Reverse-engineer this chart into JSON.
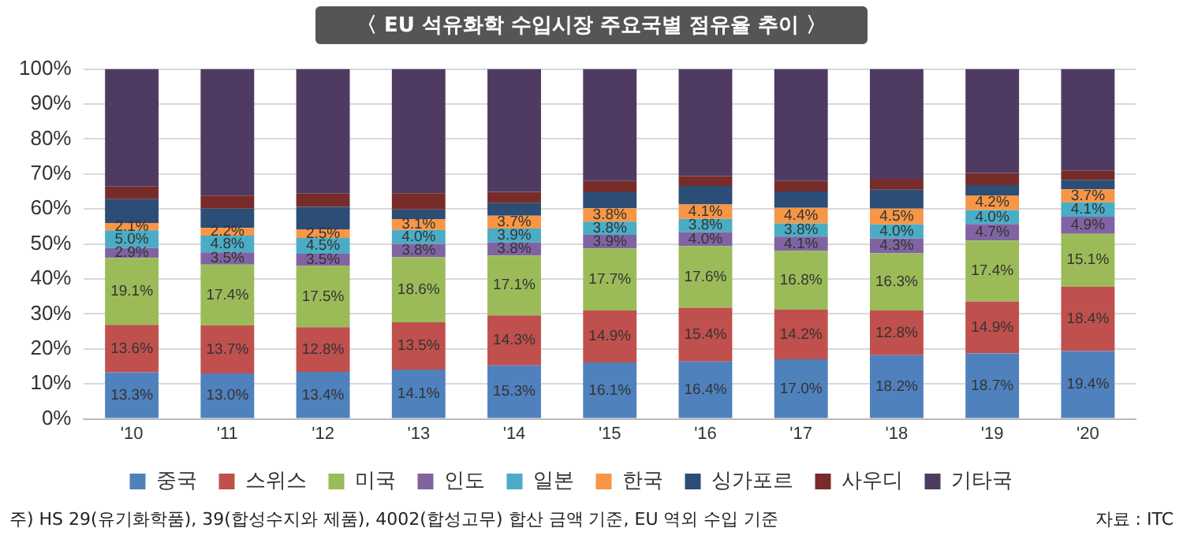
{
  "chart_data": {
    "type": "bar",
    "stacked": true,
    "title": "〈 EU 석유화학 수입시장 주요국별 점유율 추이 〉",
    "categories": [
      "'10",
      "'11",
      "'12",
      "'13",
      "'14",
      "'15",
      "'16",
      "'17",
      "'18",
      "'19",
      "'20"
    ],
    "series": [
      {
        "name": "중국",
        "color": "#4f81bd",
        "values": [
          13.3,
          13.0,
          13.4,
          14.1,
          15.3,
          16.1,
          16.4,
          17.0,
          18.2,
          18.7,
          19.4
        ],
        "value_labels": [
          "13.3%",
          "13.0%",
          "13.4%",
          "14.1%",
          "15.3%",
          "16.1%",
          "16.4%",
          "17.0%",
          "18.2%",
          "18.7%",
          "19.4%"
        ]
      },
      {
        "name": "스위스",
        "color": "#c0504d",
        "values": [
          13.6,
          13.7,
          12.8,
          13.5,
          14.3,
          14.9,
          15.4,
          14.2,
          12.8,
          14.9,
          18.4
        ],
        "value_labels": [
          "13.6%",
          "13.7%",
          "12.8%",
          "13.5%",
          "14.3%",
          "14.9%",
          "15.4%",
          "14.2%",
          "12.8%",
          "14.9%",
          "18.4%"
        ]
      },
      {
        "name": "미국",
        "color": "#9bbb59",
        "values": [
          19.1,
          17.4,
          17.5,
          18.6,
          17.1,
          17.7,
          17.6,
          16.8,
          16.3,
          17.4,
          15.1
        ],
        "value_labels": [
          "19.1%",
          "17.4%",
          "17.5%",
          "18.6%",
          "17.1%",
          "17.7%",
          "17.6%",
          "16.8%",
          "16.3%",
          "17.4%",
          "15.1%"
        ]
      },
      {
        "name": "인도",
        "color": "#8064a2",
        "values": [
          2.9,
          3.5,
          3.5,
          3.8,
          3.8,
          3.9,
          4.0,
          4.1,
          4.3,
          4.7,
          4.9
        ],
        "value_labels": [
          "2.9%",
          "3.5%",
          "3.5%",
          "3.8%",
          "3.8%",
          "3.9%",
          "4.0%",
          "4.1%",
          "4.3%",
          "4.7%",
          "4.9%"
        ]
      },
      {
        "name": "일본",
        "color": "#4bacc6",
        "values": [
          5.0,
          4.8,
          4.5,
          4.0,
          3.9,
          3.8,
          3.8,
          3.8,
          4.0,
          4.0,
          4.1
        ],
        "value_labels": [
          "5.0%",
          "4.8%",
          "4.5%",
          "4.0%",
          "3.9%",
          "3.8%",
          "3.8%",
          "3.8%",
          "4.0%",
          "4.0%",
          "4.1%"
        ]
      },
      {
        "name": "한국",
        "color": "#f79646",
        "values": [
          2.1,
          2.2,
          2.5,
          3.1,
          3.7,
          3.8,
          4.1,
          4.4,
          4.5,
          4.2,
          3.7
        ],
        "value_labels": [
          "2.1%",
          "2.2%",
          "2.5%",
          "3.1%",
          "3.7%",
          "3.8%",
          "4.1%",
          "4.4%",
          "4.5%",
          "4.2%",
          "3.7%"
        ]
      },
      {
        "name": "싱가포르",
        "color": "#2c4d75",
        "values": [
          6.8,
          5.5,
          6.4,
          2.8,
          3.6,
          4.6,
          5.3,
          4.7,
          5.4,
          2.9,
          2.7
        ]
      },
      {
        "name": "사우디",
        "color": "#772c2a",
        "values": [
          3.6,
          3.7,
          3.8,
          4.6,
          3.2,
          3.2,
          2.8,
          3.0,
          3.1,
          3.5,
          2.6
        ]
      },
      {
        "name": "기타국",
        "color": "#4f3b62",
        "values": [
          33.6,
          36.2,
          35.6,
          35.5,
          35.1,
          32.0,
          30.6,
          32.0,
          31.4,
          29.7,
          29.1
        ]
      }
    ],
    "ylim": [
      0,
      100
    ],
    "yticks": [
      {
        "value": 0,
        "label": "0%"
      },
      {
        "value": 10,
        "label": "10%"
      },
      {
        "value": 20,
        "label": "20%"
      },
      {
        "value": 30,
        "label": "30%"
      },
      {
        "value": 40,
        "label": "40%"
      },
      {
        "value": 50,
        "label": "50%"
      },
      {
        "value": 60,
        "label": "60%"
      },
      {
        "value": 70,
        "label": "70%"
      },
      {
        "value": 80,
        "label": "80%"
      },
      {
        "value": 90,
        "label": "90%"
      },
      {
        "value": 100,
        "label": "100%"
      }
    ],
    "grid": "y",
    "legend": "bottom",
    "annotations": [
      "주) HS 29(유기화학품), 39(합성수지와 제품), 4002(합성고무) 합산 금액 기준, EU 역외 수입 기준",
      "자료 : ITC"
    ]
  }
}
